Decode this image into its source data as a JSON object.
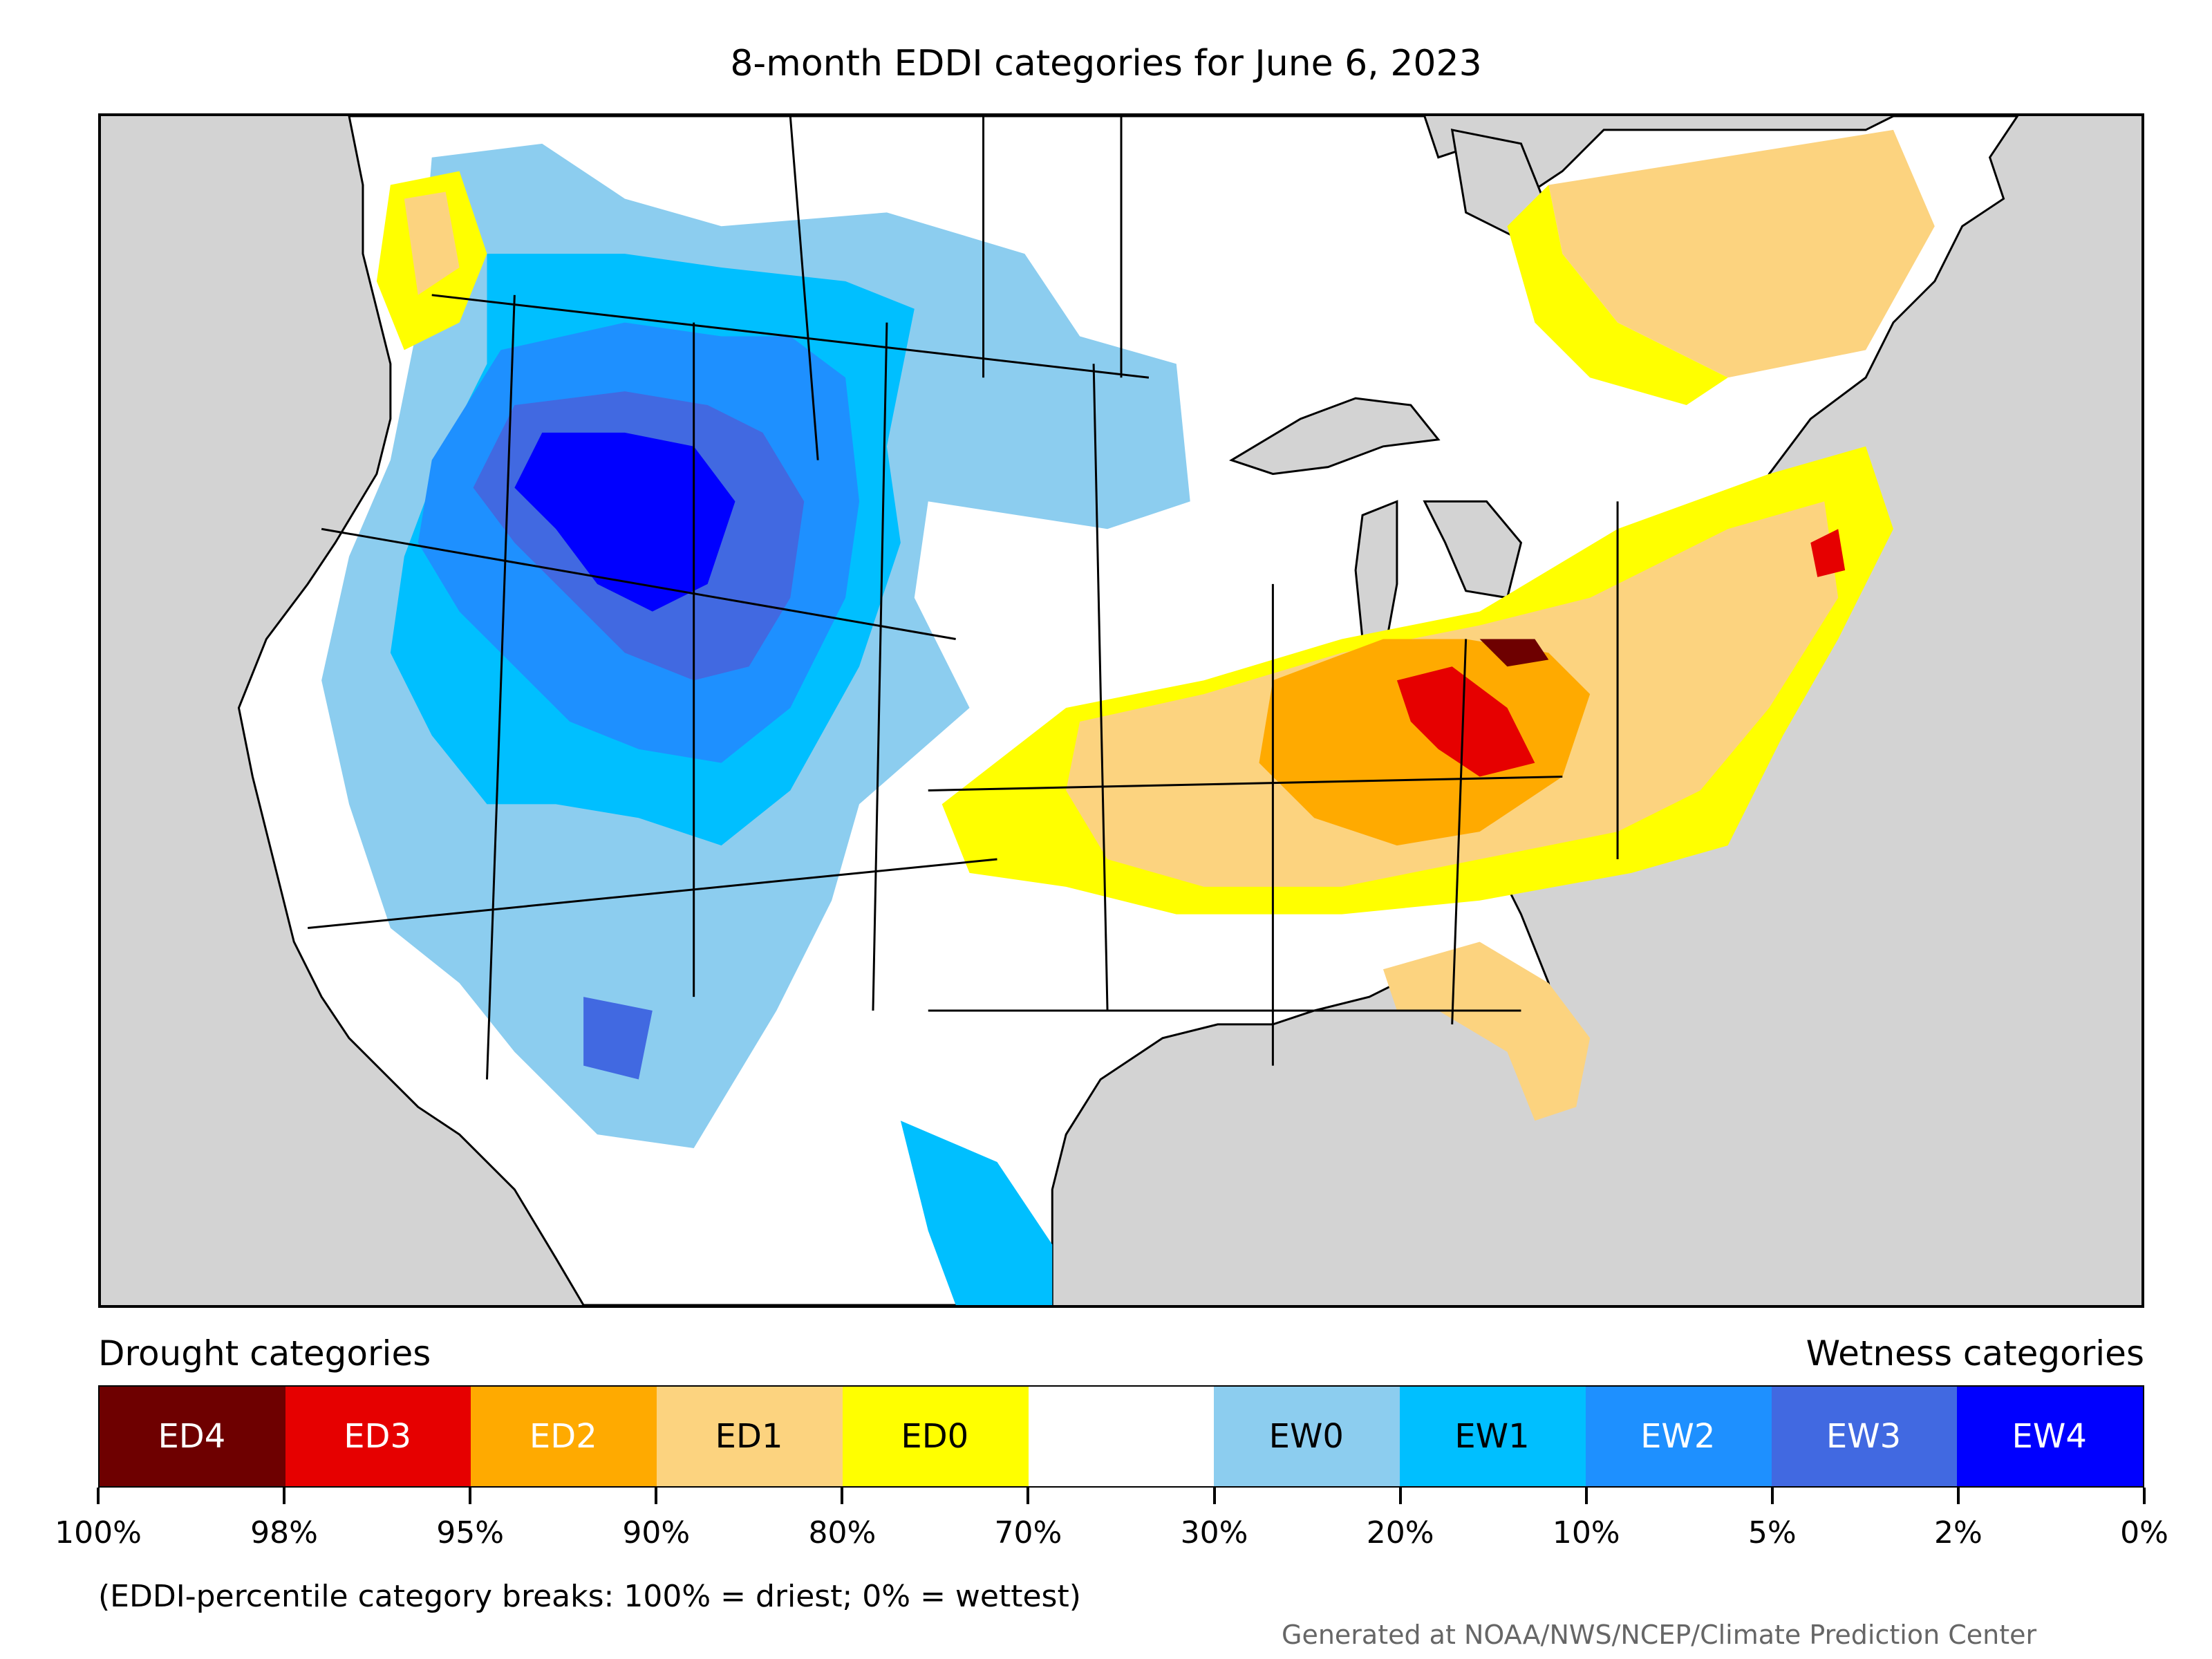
{
  "title": "8-month EDDI categories for June 6, 2023",
  "legend": {
    "drought_heading": "Drought categories",
    "wetness_heading": "Wetness categories",
    "categories": [
      {
        "label": "ED4",
        "color": "#6e0000",
        "text_color": "#ffffff"
      },
      {
        "label": "ED3",
        "color": "#e60000",
        "text_color": "#ffffff"
      },
      {
        "label": "ED2",
        "color": "#ffaa00",
        "text_color": "#ffffff"
      },
      {
        "label": "ED1",
        "color": "#fcd37f",
        "text_color": "#000000"
      },
      {
        "label": "ED0",
        "color": "#ffff00",
        "text_color": "#000000"
      },
      {
        "label": "",
        "color": "#ffffff",
        "text_color": "#000000"
      },
      {
        "label": "EW0",
        "color": "#8ccdef",
        "text_color": "#000000"
      },
      {
        "label": "EW1",
        "color": "#00bfff",
        "text_color": "#000000"
      },
      {
        "label": "EW2",
        "color": "#1e90ff",
        "text_color": "#ffffff"
      },
      {
        "label": "EW3",
        "color": "#4169e1",
        "text_color": "#ffffff"
      },
      {
        "label": "EW4",
        "color": "#0000ff",
        "text_color": "#ffffff"
      }
    ],
    "tick_labels": [
      "100%",
      "98%",
      "95%",
      "90%",
      "80%",
      "70%",
      "30%",
      "20%",
      "10%",
      "5%",
      "2%",
      "0%"
    ],
    "note": "(EDDI-percentile category breaks: 100% = driest; 0% = wettest)"
  },
  "credit": "Generated at NOAA/NWS/NCEP/Climate Prediction Center",
  "map_colors": {
    "background": "#d3d3d3",
    "land": "#ffffff",
    "water": "#d3d3d3",
    "borders": "#000000"
  }
}
